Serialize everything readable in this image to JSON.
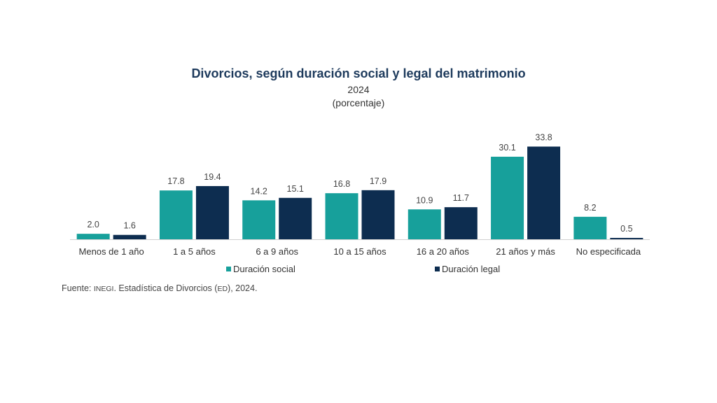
{
  "chart_data": {
    "type": "bar",
    "title": "Divorcios, según duración social y legal del matrimonio",
    "subtitle": "2024",
    "unit_label": "(porcentaje)",
    "categories": [
      "Menos de 1 año",
      "1 a 5 años",
      "6 a 9 años",
      "10 a 15 años",
      "16 a 20 años",
      "21 años y más",
      "No especificada"
    ],
    "series": [
      {
        "name": "Duración social",
        "color": "#17a09b",
        "values": [
          2.0,
          17.8,
          14.2,
          16.8,
          10.9,
          30.1,
          8.2
        ]
      },
      {
        "name": "Duración legal",
        "color": "#0d2d50",
        "values": [
          1.6,
          19.4,
          15.1,
          17.9,
          11.7,
          33.8,
          0.5
        ]
      }
    ],
    "ylim": [
      0,
      35
    ],
    "grid": false,
    "legend_position": "bottom"
  },
  "source": {
    "prefix": "Fuente: ",
    "org": "INEGI",
    "text_before": ". Estadística de Divorcios (",
    "abbr": "ED",
    "text_after": "), 2024."
  }
}
